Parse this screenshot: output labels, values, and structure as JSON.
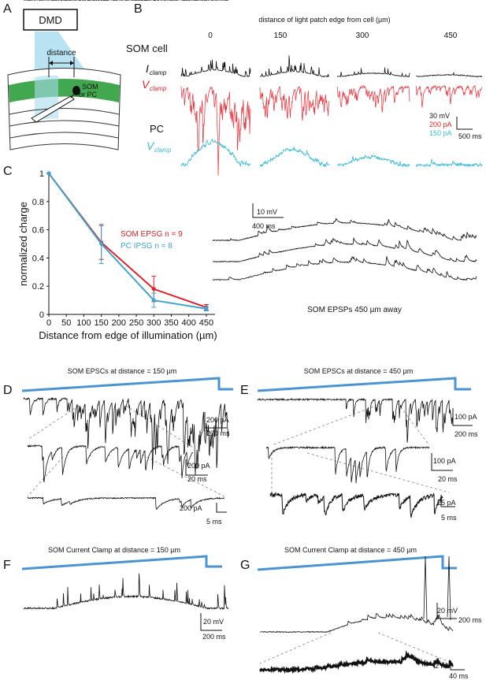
{
  "panel_labels": [
    "A",
    "B",
    "C",
    "D",
    "E",
    "F",
    "G"
  ],
  "panel_a": {
    "dmd": "DMD",
    "distance": "distance",
    "som": "SOM",
    "or_pc": "or PC"
  },
  "panel_b": {
    "title": "distance of light patch edge from cell (µm)",
    "distances": [
      "0",
      "150",
      "300",
      "450"
    ],
    "som_cell": "SOM cell",
    "i": "I",
    "v": "V",
    "clamp": "clamp",
    "pc": "PC",
    "scale": [
      "30 mV",
      "200 pA",
      "150 pA",
      "500 ms"
    ]
  },
  "chart_data": {
    "type": "line",
    "xlabel": "Distance from edge of illumination (µm)",
    "ylabel": "normalized charge",
    "x": [
      0,
      150,
      300,
      450
    ],
    "series": [
      {
        "name": "SOM EPSG n = 9",
        "color": "#e3212b",
        "values": [
          1,
          0.51,
          0.18,
          0.05
        ],
        "errors": [
          0,
          0.12,
          0.09,
          0.02
        ]
      },
      {
        "name": "PC IPSG n = 8",
        "color": "#3ea6cc",
        "values": [
          1,
          0.5,
          0.1,
          0.04
        ],
        "errors": [
          0,
          0.14,
          0.05,
          0.015
        ]
      }
    ],
    "xlim": [
      0,
      475
    ],
    "ylim": [
      0,
      1
    ],
    "xticks": [
      0,
      50,
      100,
      150,
      200,
      250,
      300,
      350,
      400,
      450
    ],
    "yticks": [
      0,
      0.2,
      0.4,
      0.6,
      0.8,
      1
    ]
  },
  "panel_c_inset": {
    "scale": [
      "10 mV",
      "400 ms"
    ],
    "caption": "SOM EPSPs 450 µm away"
  },
  "panel_d": {
    "title": "SOM EPSCs at distance = 150  µm",
    "scale": [
      "200 pA",
      "200 ms",
      "200 pA",
      "20 ms",
      "200 pA",
      "5 ms"
    ]
  },
  "panel_e": {
    "title": "SOM EPSCs at distance = 450  µm",
    "scale": [
      "100 pA",
      "200 ms",
      "100 pA",
      "20 ms",
      "25 pA",
      "5 ms"
    ]
  },
  "panel_f": {
    "title": "SOM Current Clamp at distance = 150  µm",
    "scale": [
      "20 mV",
      "200 ms"
    ]
  },
  "panel_g": {
    "title": "SOM Current Clamp at distance = 450  µm",
    "scale": [
      "20 mV",
      "200 ms",
      "2 mV",
      "40 ms"
    ]
  }
}
